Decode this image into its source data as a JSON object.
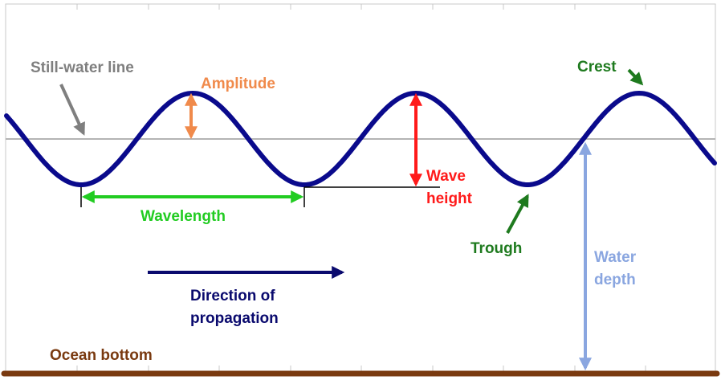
{
  "labels": {
    "still_water_line": "Still-water line",
    "amplitude": "Amplitude",
    "crest": "Crest",
    "wave_height_line1": "Wave",
    "wave_height_line2": "height",
    "wavelength": "Wavelength",
    "trough": "Trough",
    "water_depth_line1": "Water",
    "water_depth_line2": "depth",
    "direction_line1": "Direction of",
    "direction_line2": "propagation",
    "ocean_bottom": "Ocean bottom"
  },
  "colors": {
    "wave": "#0a0a8c",
    "still_water": "#b4b4b4",
    "grey_label": "#7f7f7f",
    "amplitude": "#f08a4b",
    "crest_trough": "#1e7a1e",
    "wave_height": "#ff1a1a",
    "wavelength": "#22cc22",
    "water_depth": "#8aa6e0",
    "direction": "#0a0a6e",
    "ocean_bottom": "#7a3a10",
    "grid": "#d0d0d0"
  }
}
